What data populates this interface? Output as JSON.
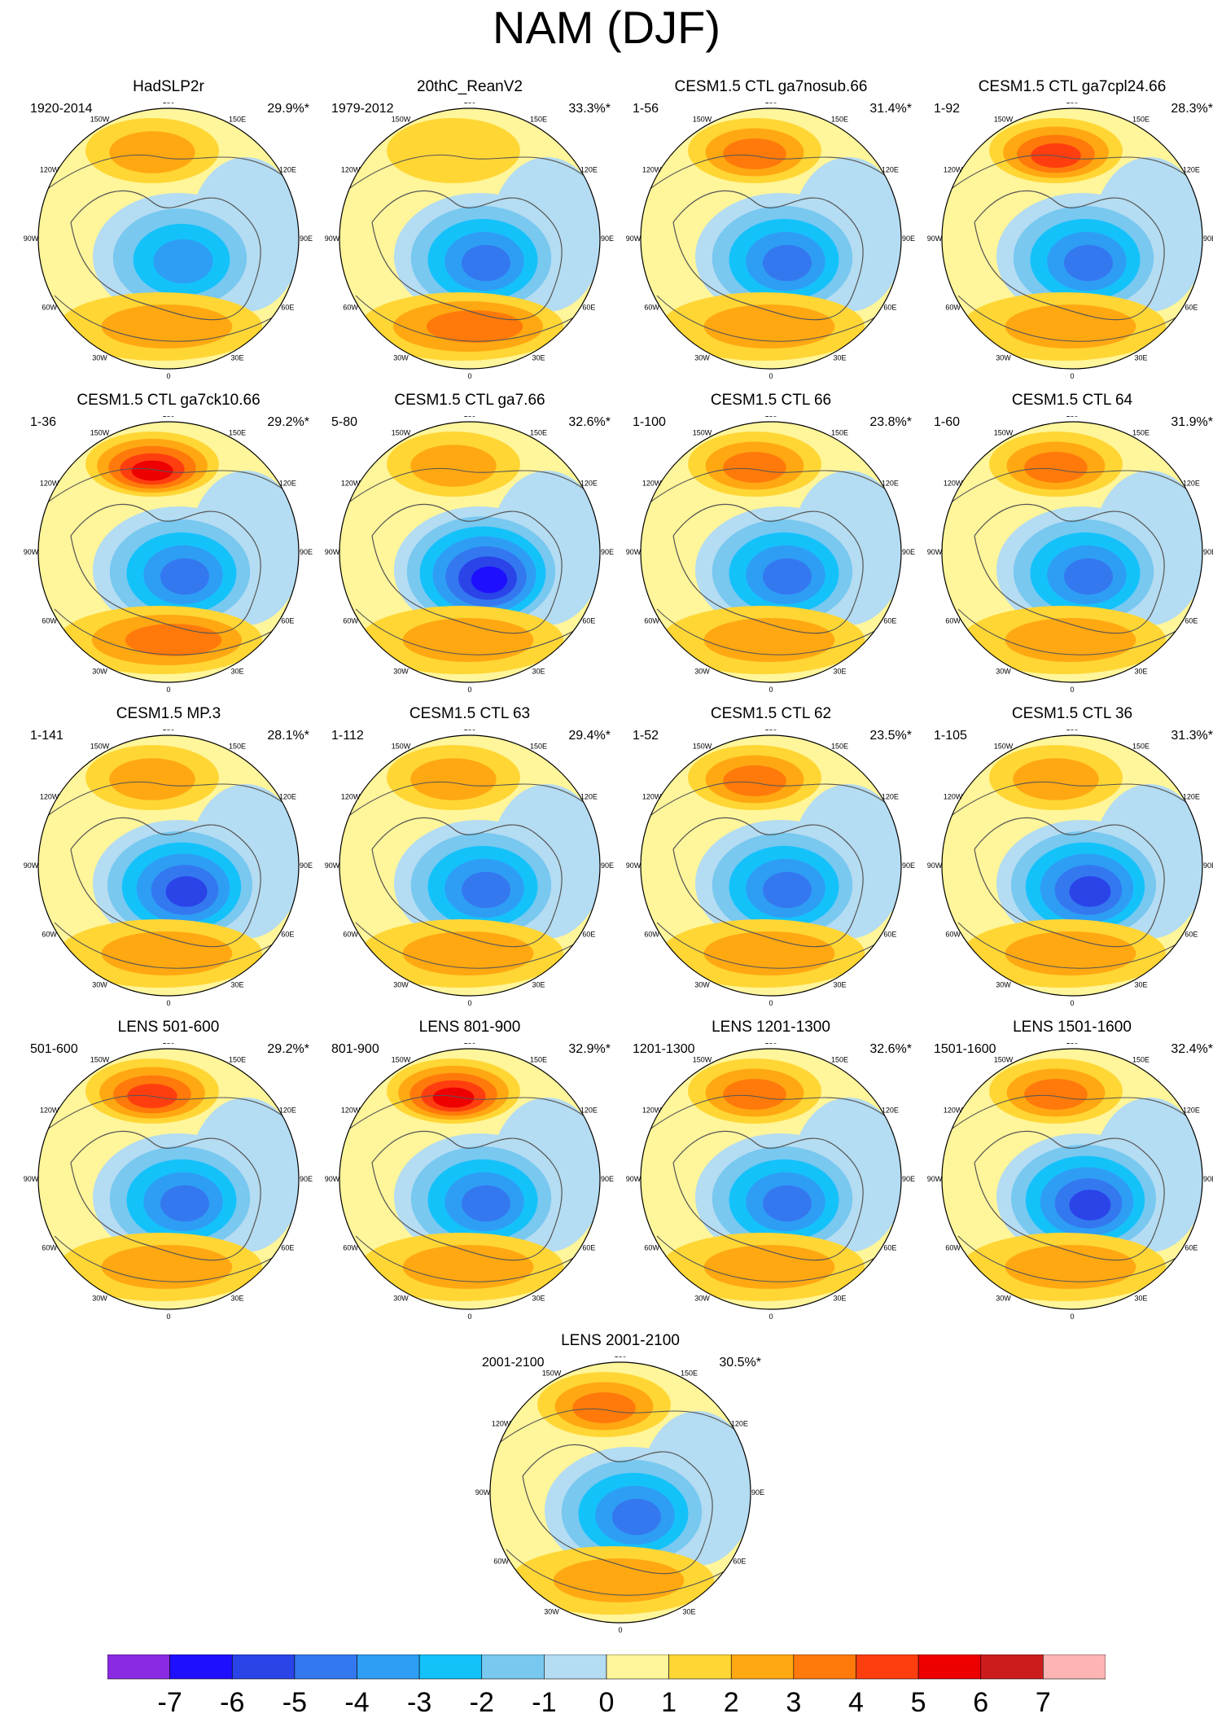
{
  "title": "NAM (DJF)",
  "chart_data": {
    "type": "polar-stereographic contour maps (small multiples)",
    "variable": "North Annular Mode sea-level pressure regression, DJF",
    "projection": "North polar stereographic, 20N–90N",
    "longitude_labels": [
      "180",
      "150E",
      "120E",
      "90E",
      "60E",
      "30E",
      "0",
      "30W",
      "60W",
      "90W",
      "120W",
      "150W"
    ],
    "panels": [
      {
        "title": "HadSLP2r",
        "period": "1920-2014",
        "variance": "29.9%*",
        "arctic_min": -3.5,
        "pacific_max": 2.3,
        "atlantic_max": 2.5
      },
      {
        "title": "20thC_ReanV2",
        "period": "1979-2012",
        "variance": "33.3%*",
        "arctic_min": -4.2,
        "pacific_max": 1.8,
        "atlantic_max": 3.2
      },
      {
        "title": "CESM1.5 CTL ga7nosub.66",
        "period": "1-56",
        "variance": "31.4%*",
        "arctic_min": -4.5,
        "pacific_max": 3.5,
        "atlantic_max": 2.5
      },
      {
        "title": "CESM1.5 CTL ga7cpl24.66",
        "period": "1-92",
        "variance": "28.3%*",
        "arctic_min": -4.3,
        "pacific_max": 4.2,
        "atlantic_max": 2.2
      },
      {
        "title": "CESM1.5 CTL ga7ck10.66",
        "period": "1-36",
        "variance": "29.2%*",
        "arctic_min": -4.2,
        "pacific_max": 5.6,
        "atlantic_max": 3.4
      },
      {
        "title": "CESM1.5 CTL ga7.66",
        "period": "5-80",
        "variance": "32.6%*",
        "arctic_min": -6.2,
        "pacific_max": 2.8,
        "atlantic_max": 2.6
      },
      {
        "title": "CESM1.5 CTL 66",
        "period": "1-100",
        "variance": "23.8%*",
        "arctic_min": -4.8,
        "pacific_max": 3.3,
        "atlantic_max": 2.3
      },
      {
        "title": "CESM1.5 CTL 64",
        "period": "1-60",
        "variance": "31.9%*",
        "arctic_min": -5.0,
        "pacific_max": 4.0,
        "atlantic_max": 2.2
      },
      {
        "title": "CESM1.5 MP.3",
        "period": "1-141",
        "variance": "28.1%*",
        "arctic_min": -5.3,
        "pacific_max": 2.6,
        "atlantic_max": 2.1
      },
      {
        "title": "CESM1.5 CTL 63",
        "period": "1-112",
        "variance": "29.4%*",
        "arctic_min": -4.8,
        "pacific_max": 2.5,
        "atlantic_max": 2.2
      },
      {
        "title": "CESM1.5 CTL 62",
        "period": "1-52",
        "variance": "23.5%*",
        "arctic_min": -4.2,
        "pacific_max": 3.2,
        "atlantic_max": 2.1
      },
      {
        "title": "CESM1.5 CTL 36",
        "period": "1-105",
        "variance": "31.3%*",
        "arctic_min": -5.2,
        "pacific_max": 2.6,
        "atlantic_max": 2.3
      },
      {
        "title": "LENS 501-600",
        "period": "501-600",
        "variance": "29.2%*",
        "arctic_min": -4.6,
        "pacific_max": 4.6,
        "atlantic_max": 2.3
      },
      {
        "title": "LENS 801-900",
        "period": "801-900",
        "variance": "32.9%*",
        "arctic_min": -4.8,
        "pacific_max": 5.4,
        "atlantic_max": 2.4
      },
      {
        "title": "LENS 1201-1300",
        "period": "1201-1300",
        "variance": "32.6%*",
        "arctic_min": -5.0,
        "pacific_max": 3.4,
        "atlantic_max": 2.3
      },
      {
        "title": "LENS 1501-1600",
        "period": "1501-1600",
        "variance": "32.4%*",
        "arctic_min": -5.4,
        "pacific_max": 3.2,
        "atlantic_max": 2.2
      },
      {
        "title": "LENS 2001-2100",
        "period": "2001-2100",
        "variance": "30.5%*",
        "arctic_min": -5.0,
        "pacific_max": 3.6,
        "atlantic_max": 2.3
      }
    ],
    "colorbar": {
      "tick_labels": [
        "-7",
        "-6",
        "-5",
        "-4",
        "-3",
        "-2",
        "-1",
        "0",
        "1",
        "2",
        "3",
        "4",
        "5",
        "6",
        "7"
      ],
      "levels": [
        -7,
        -6,
        -5,
        -4,
        -3,
        -2,
        -1,
        0,
        1,
        2,
        3,
        4,
        5,
        6,
        7
      ],
      "colors": [
        "#8a2be2",
        "#1e10ff",
        "#2a44e8",
        "#3478f0",
        "#2e9ef5",
        "#14c2fa",
        "#78c8f0",
        "#b4dcf2",
        "#fff59a",
        "#ffd634",
        "#ffa812",
        "#ff7a0a",
        "#ff3e10",
        "#ee0000",
        "#cc1c1c",
        "#ffb4b4"
      ]
    }
  }
}
